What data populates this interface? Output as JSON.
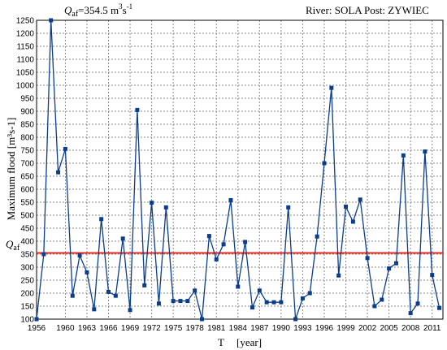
{
  "header": {
    "qaf_symbol": "Q",
    "qaf_subscript": "af",
    "qaf_value": "=354.5 m",
    "qaf_exp1": "3",
    "qaf_unit2": "s",
    "qaf_exp2": "-1",
    "river": "River: SOLA",
    "post": "Post: ZYWIEC"
  },
  "colors": {
    "series": "#0b3d8c",
    "reference_line": "#e8251f",
    "grid": "#8a8a8a"
  },
  "chart_data": {
    "type": "line",
    "title": "",
    "xlabel_main": "T",
    "xlabel_unit": "[year]",
    "ylabel": "Maximum flood [m³s-1]",
    "xlim": [
      1956,
      2012.5
    ],
    "ylim": [
      100,
      1250
    ],
    "y_ticks": [
      100,
      150,
      200,
      250,
      300,
      350,
      400,
      450,
      500,
      550,
      600,
      650,
      700,
      750,
      800,
      850,
      900,
      950,
      1000,
      1050,
      1100,
      1150,
      1200,
      1250
    ],
    "x_ticks": [
      1956,
      1960,
      1963,
      1966,
      1969,
      1972,
      1975,
      1978,
      1981,
      1984,
      1987,
      1990,
      1993,
      1996,
      1999,
      2002,
      2005,
      2008,
      2011
    ],
    "grid": true,
    "reference_line": {
      "value": 354.5,
      "label_symbol": "Q",
      "label_subscript": "af"
    },
    "series": [
      {
        "x": [
          1956,
          1957,
          1958,
          1959,
          1960,
          1961,
          1962,
          1963,
          1964,
          1965,
          1966,
          1967,
          1968,
          1969,
          1970,
          1971,
          1972,
          1973,
          1974,
          1975,
          1976,
          1977,
          1978,
          1979,
          1980,
          1981,
          1982,
          1983,
          1984,
          1985,
          1986,
          1987,
          1988,
          1989,
          1990,
          1991,
          1992,
          1993,
          1994,
          1995,
          1996,
          1997,
          1998,
          1999,
          2000,
          2001,
          2002,
          2003,
          2004,
          2005,
          2006,
          2007,
          2008,
          2009,
          2010,
          2011,
          2012
        ],
        "y": [
          100,
          350,
          1250,
          665,
          755,
          190,
          345,
          280,
          138,
          485,
          205,
          190,
          410,
          135,
          905,
          230,
          548,
          160,
          530,
          170,
          170,
          170,
          210,
          100,
          420,
          330,
          388,
          558,
          225,
          397,
          145,
          210,
          165,
          165,
          165,
          530,
          95,
          180,
          200,
          418,
          700,
          990,
          268,
          533,
          475,
          560,
          335,
          150,
          175,
          295,
          315,
          730,
          123,
          160,
          745,
          270,
          143
        ]
      }
    ]
  }
}
